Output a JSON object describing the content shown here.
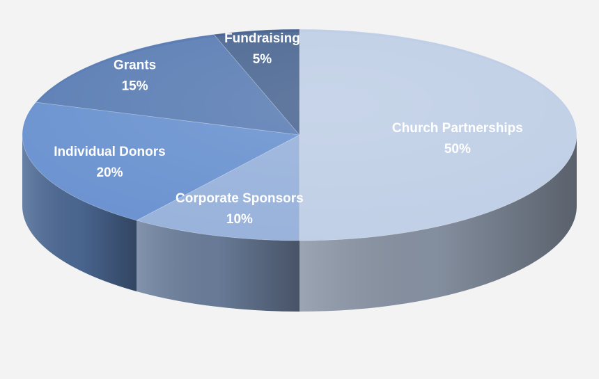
{
  "chart_data": {
    "type": "pie",
    "title": "",
    "slices": [
      {
        "label": "Church Partnerships",
        "value": 50,
        "value_label": "50%",
        "color": "#c0cfe6"
      },
      {
        "label": "Corporate Sponsors",
        "value": 10,
        "value_label": "10%",
        "color": "#98b2db"
      },
      {
        "label": "Individual Donors",
        "value": 20,
        "value_label": "20%",
        "color": "#6b93d0"
      },
      {
        "label": "Grants",
        "value": 15,
        "value_label": "15%",
        "color": "#5d7fb5"
      },
      {
        "label": "Fundraising",
        "value": 5,
        "value_label": "5%",
        "color": "#4d6893"
      }
    ],
    "legend": "none",
    "style": "3d-exploded-none"
  }
}
